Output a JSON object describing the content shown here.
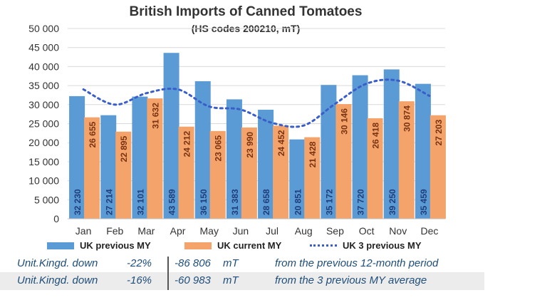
{
  "chart_data": {
    "type": "bar",
    "title": "British Imports of Canned Tomatoes",
    "subtitle": "(HS codes 200210, mT)",
    "categories": [
      "Jan",
      "Feb",
      "Mar",
      "Apr",
      "May",
      "Jun",
      "Jul",
      "Aug",
      "Sep",
      "Oct",
      "Nov",
      "Dec"
    ],
    "series": [
      {
        "name": "UK previous MY",
        "type": "bar",
        "color": "#5b9bd5",
        "values": [
          32230,
          27214,
          32101,
          43589,
          36150,
          31383,
          28658,
          20851,
          35172,
          37720,
          39250,
          35459
        ],
        "labels": [
          "32 230",
          "27 214",
          "32 101",
          "43 589",
          "36 150",
          "31 383",
          "28 658",
          "20 851",
          "35 172",
          "37 720",
          "39 250",
          "35 459"
        ]
      },
      {
        "name": "UK current MY",
        "type": "bar",
        "color": "#f4a46b",
        "values": [
          26655,
          22895,
          31632,
          24212,
          23065,
          23990,
          24452,
          21428,
          30146,
          26418,
          30874,
          27203
        ],
        "labels": [
          "26 655",
          "22 895",
          "31 632",
          "24 212",
          "23 065",
          "23 990",
          "24 452",
          "21 428",
          "30 146",
          "26 418",
          "30 874",
          "27 203"
        ]
      },
      {
        "name": "UK 3 previous MY",
        "type": "line",
        "style": "dotted",
        "color": "#3a5ec9",
        "values": [
          34000,
          30000,
          33000,
          34000,
          29500,
          28700,
          25200,
          24500,
          30200,
          35500,
          36300,
          32300
        ]
      }
    ],
    "ylim": [
      0,
      50000
    ],
    "yticks": [
      0,
      5000,
      10000,
      15000,
      20000,
      25000,
      30000,
      35000,
      40000,
      45000,
      50000
    ],
    "ytick_labels": [
      "0",
      "5 000",
      "10 000",
      "15 000",
      "20 000",
      "25 000",
      "30 000",
      "35 000",
      "40 000",
      "45 000",
      "50 000"
    ],
    "grid": true,
    "legend_position": "bottom"
  },
  "summary": {
    "rows": [
      {
        "country": "Unit.Kingd. down",
        "pct": "-22%",
        "value": "-86 806",
        "unit": "mT",
        "note": "from the previous 12-month period"
      },
      {
        "country": "Unit.Kingd. down",
        "pct": "-16%",
        "value": "-60 983",
        "unit": "mT",
        "note": "from the 3 previous MY average"
      }
    ]
  }
}
